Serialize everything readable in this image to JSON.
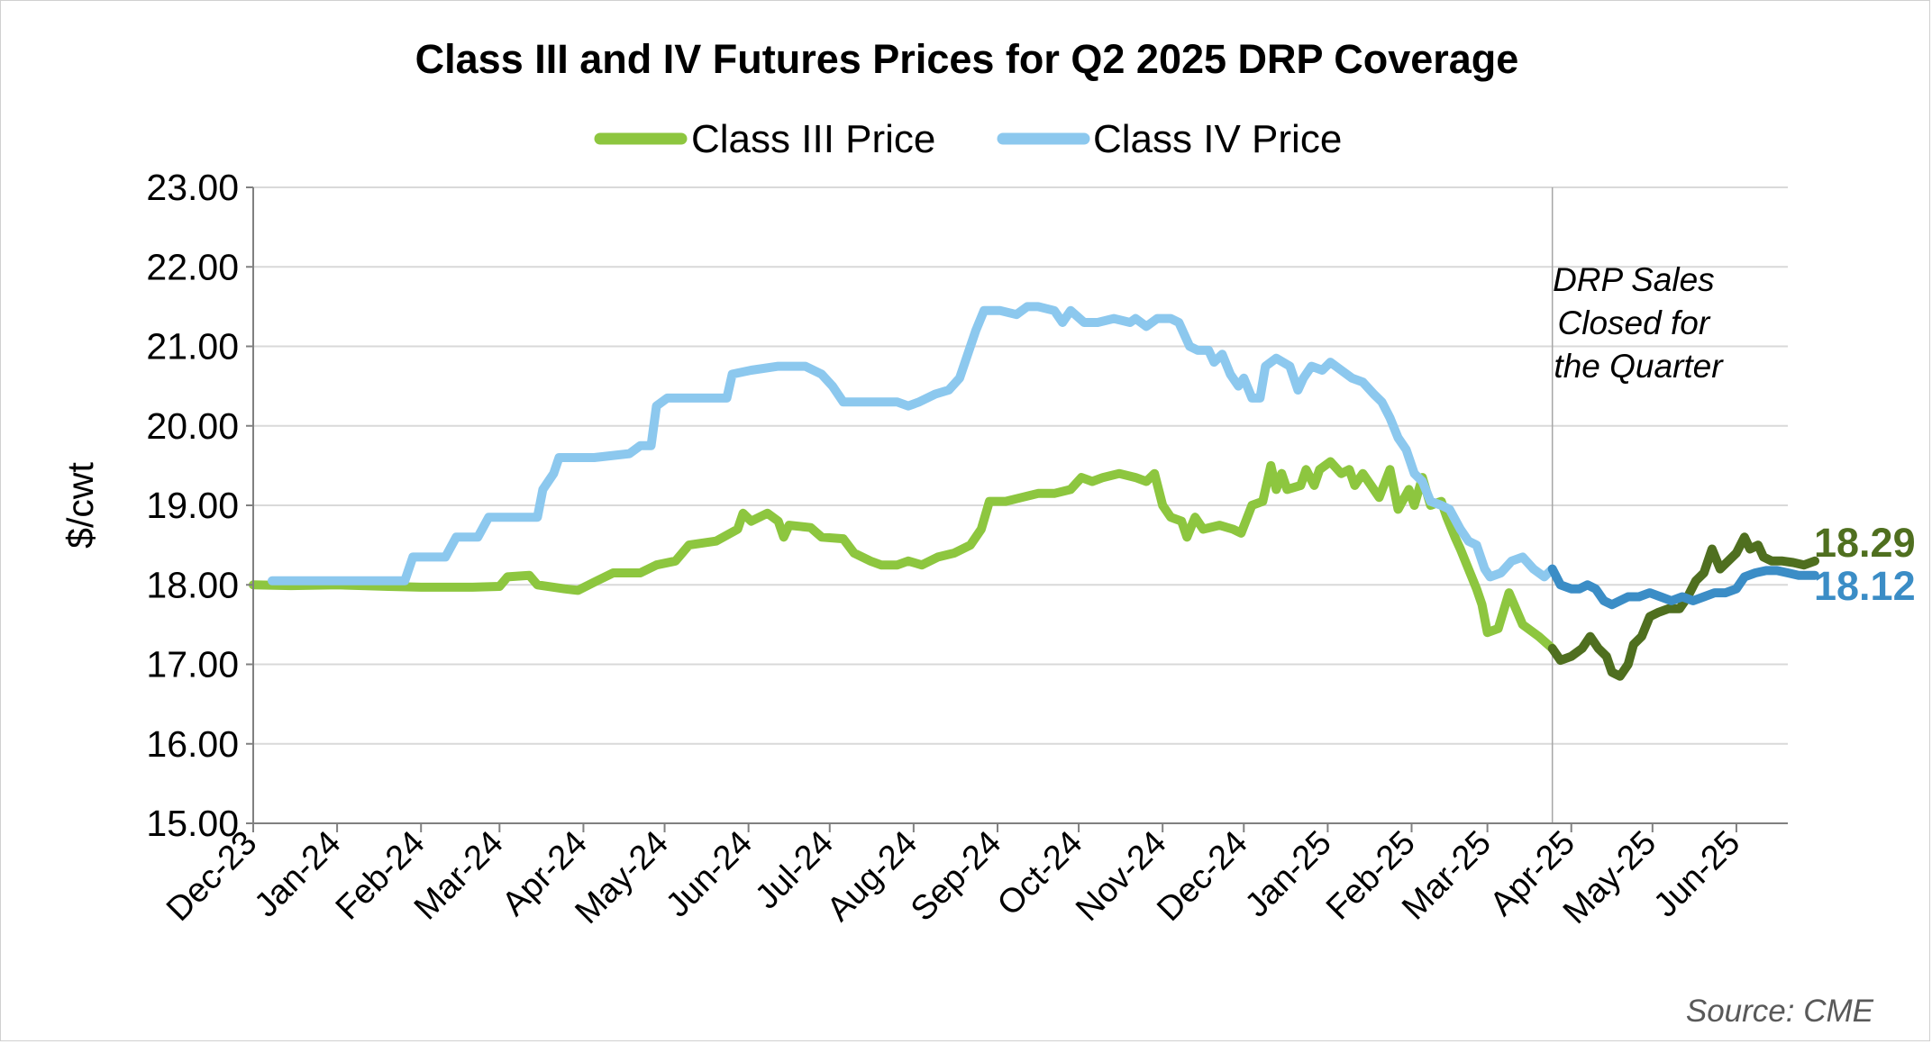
{
  "chart_data": {
    "type": "line",
    "title": "Class III and IV Futures Prices for Q2 2025 DRP Coverage",
    "ylabel": "$/cwt",
    "ylim": [
      15,
      23
    ],
    "y_ticks": [
      "15.00",
      "16.00",
      "17.00",
      "18.00",
      "19.00",
      "20.00",
      "21.00",
      "22.00",
      "23.00"
    ],
    "x_range": [
      "2023-12-01",
      "2025-06-20"
    ],
    "x_ticks": [
      {
        "date": "2023-12-01",
        "label": "Dec-23"
      },
      {
        "date": "2024-01-01",
        "label": "Jan-24"
      },
      {
        "date": "2024-02-01",
        "label": "Feb-24"
      },
      {
        "date": "2024-03-01",
        "label": "Mar-24"
      },
      {
        "date": "2024-04-01",
        "label": "Apr-24"
      },
      {
        "date": "2024-05-01",
        "label": "May-24"
      },
      {
        "date": "2024-06-01",
        "label": "Jun-24"
      },
      {
        "date": "2024-07-01",
        "label": "Jul-24"
      },
      {
        "date": "2024-08-01",
        "label": "Aug-24"
      },
      {
        "date": "2024-09-01",
        "label": "Sep-24"
      },
      {
        "date": "2024-10-01",
        "label": "Oct-24"
      },
      {
        "date": "2024-11-01",
        "label": "Nov-24"
      },
      {
        "date": "2024-12-01",
        "label": "Dec-24"
      },
      {
        "date": "2025-01-01",
        "label": "Jan-25"
      },
      {
        "date": "2025-02-01",
        "label": "Feb-25"
      },
      {
        "date": "2025-03-01",
        "label": "Mar-25"
      },
      {
        "date": "2025-04-01",
        "label": "Apr-25"
      },
      {
        "date": "2025-05-01",
        "label": "May-25"
      },
      {
        "date": "2025-06-01",
        "label": "Jun-25"
      }
    ],
    "grid": "horizontal",
    "legend": "top",
    "divider_date": "2025-03-25",
    "annotation": [
      "DRP Sales",
      "Closed for",
      "the Quarter"
    ],
    "series": [
      {
        "name": "Class III Price",
        "color": "#8dc63f",
        "color_after_divider": "#4f6f1f",
        "end_label": "18.29",
        "points": [
          [
            "2023-12-01",
            18.0
          ],
          [
            "2023-12-15",
            17.99
          ],
          [
            "2024-01-01",
            18.0
          ],
          [
            "2024-01-20",
            17.98
          ],
          [
            "2024-02-01",
            17.97
          ],
          [
            "2024-02-20",
            17.97
          ],
          [
            "2024-03-01",
            17.98
          ],
          [
            "2024-03-04",
            18.1
          ],
          [
            "2024-03-12",
            18.12
          ],
          [
            "2024-03-15",
            18.0
          ],
          [
            "2024-03-25",
            17.95
          ],
          [
            "2024-03-30",
            17.93
          ],
          [
            "2024-04-06",
            18.05
          ],
          [
            "2024-04-12",
            18.15
          ],
          [
            "2024-04-22",
            18.15
          ],
          [
            "2024-04-28",
            18.25
          ],
          [
            "2024-05-05",
            18.3
          ],
          [
            "2024-05-10",
            18.5
          ],
          [
            "2024-05-20",
            18.55
          ],
          [
            "2024-05-28",
            18.7
          ],
          [
            "2024-05-30",
            18.9
          ],
          [
            "2024-06-02",
            18.8
          ],
          [
            "2024-06-08",
            18.9
          ],
          [
            "2024-06-12",
            18.8
          ],
          [
            "2024-06-14",
            18.6
          ],
          [
            "2024-06-16",
            18.75
          ],
          [
            "2024-06-24",
            18.72
          ],
          [
            "2024-06-28",
            18.6
          ],
          [
            "2024-07-06",
            18.58
          ],
          [
            "2024-07-10",
            18.4
          ],
          [
            "2024-07-16",
            18.3
          ],
          [
            "2024-07-20",
            18.25
          ],
          [
            "2024-07-26",
            18.25
          ],
          [
            "2024-07-30",
            18.3
          ],
          [
            "2024-08-04",
            18.25
          ],
          [
            "2024-08-10",
            18.35
          ],
          [
            "2024-08-16",
            18.4
          ],
          [
            "2024-08-22",
            18.5
          ],
          [
            "2024-08-26",
            18.7
          ],
          [
            "2024-08-29",
            19.05
          ],
          [
            "2024-09-04",
            19.05
          ],
          [
            "2024-09-10",
            19.1
          ],
          [
            "2024-09-16",
            19.15
          ],
          [
            "2024-09-22",
            19.15
          ],
          [
            "2024-09-28",
            19.2
          ],
          [
            "2024-10-02",
            19.35
          ],
          [
            "2024-10-06",
            19.3
          ],
          [
            "2024-10-10",
            19.35
          ],
          [
            "2024-10-16",
            19.4
          ],
          [
            "2024-10-22",
            19.35
          ],
          [
            "2024-10-26",
            19.3
          ],
          [
            "2024-10-29",
            19.4
          ],
          [
            "2024-11-01",
            19.0
          ],
          [
            "2024-11-04",
            18.85
          ],
          [
            "2024-11-08",
            18.8
          ],
          [
            "2024-11-10",
            18.6
          ],
          [
            "2024-11-13",
            18.85
          ],
          [
            "2024-11-16",
            18.7
          ],
          [
            "2024-11-22",
            18.75
          ],
          [
            "2024-11-27",
            18.7
          ],
          [
            "2024-11-30",
            18.65
          ],
          [
            "2024-12-04",
            19.0
          ],
          [
            "2024-12-08",
            19.05
          ],
          [
            "2024-12-11",
            19.5
          ],
          [
            "2024-12-13",
            19.2
          ],
          [
            "2024-12-15",
            19.4
          ],
          [
            "2024-12-17",
            19.2
          ],
          [
            "2024-12-22",
            19.25
          ],
          [
            "2024-12-24",
            19.45
          ],
          [
            "2024-12-27",
            19.25
          ],
          [
            "2024-12-29",
            19.45
          ],
          [
            "2025-01-02",
            19.55
          ],
          [
            "2025-01-06",
            19.4
          ],
          [
            "2025-01-09",
            19.45
          ],
          [
            "2025-01-11",
            19.25
          ],
          [
            "2025-01-14",
            19.4
          ],
          [
            "2025-01-17",
            19.25
          ],
          [
            "2025-01-20",
            19.1
          ],
          [
            "2025-01-24",
            19.45
          ],
          [
            "2025-01-27",
            18.95
          ],
          [
            "2025-01-31",
            19.2
          ],
          [
            "2025-02-02",
            19.0
          ],
          [
            "2025-02-05",
            19.35
          ],
          [
            "2025-02-08",
            19.0
          ],
          [
            "2025-02-12",
            19.05
          ],
          [
            "2025-02-14",
            18.85
          ],
          [
            "2025-02-17",
            18.6
          ],
          [
            "2025-02-19",
            18.45
          ],
          [
            "2025-02-22",
            18.2
          ],
          [
            "2025-02-25",
            17.95
          ],
          [
            "2025-02-27",
            17.75
          ],
          [
            "2025-03-01",
            17.4
          ],
          [
            "2025-03-05",
            17.45
          ],
          [
            "2025-03-09",
            17.9
          ],
          [
            "2025-03-14",
            17.5
          ],
          [
            "2025-03-20",
            17.35
          ],
          [
            "2025-03-25",
            17.2
          ],
          [
            "2025-03-28",
            17.05
          ],
          [
            "2025-04-01",
            17.1
          ],
          [
            "2025-04-05",
            17.2
          ],
          [
            "2025-04-08",
            17.35
          ],
          [
            "2025-04-11",
            17.2
          ],
          [
            "2025-04-14",
            17.1
          ],
          [
            "2025-04-16",
            16.9
          ],
          [
            "2025-04-19",
            16.85
          ],
          [
            "2025-04-22",
            17.0
          ],
          [
            "2025-04-24",
            17.25
          ],
          [
            "2025-04-27",
            17.35
          ],
          [
            "2025-04-30",
            17.6
          ],
          [
            "2025-05-03",
            17.65
          ],
          [
            "2025-05-07",
            17.7
          ],
          [
            "2025-05-11",
            17.7
          ],
          [
            "2025-05-14",
            17.85
          ],
          [
            "2025-05-17",
            18.05
          ],
          [
            "2025-05-20",
            18.15
          ],
          [
            "2025-05-23",
            18.45
          ],
          [
            "2025-05-26",
            18.2
          ],
          [
            "2025-05-29",
            18.3
          ],
          [
            "2025-06-01",
            18.4
          ],
          [
            "2025-06-04",
            18.6
          ],
          [
            "2025-06-06",
            18.45
          ],
          [
            "2025-06-09",
            18.5
          ],
          [
            "2025-06-11",
            18.35
          ],
          [
            "2025-06-14",
            18.3
          ],
          [
            "2025-06-18",
            18.3
          ],
          [
            "2025-06-22",
            18.28
          ],
          [
            "2025-06-26",
            18.25
          ],
          [
            "2025-06-30",
            18.3
          ]
        ]
      },
      {
        "name": "Class IV Price",
        "color": "#8cc8ee",
        "color_after_divider": "#3b8dc6",
        "end_label": "18.12",
        "points": [
          [
            "2023-12-08",
            18.05
          ],
          [
            "2023-12-20",
            18.05
          ],
          [
            "2024-01-05",
            18.05
          ],
          [
            "2024-01-18",
            18.05
          ],
          [
            "2024-01-26",
            18.05
          ],
          [
            "2024-01-29",
            18.35
          ],
          [
            "2024-02-10",
            18.35
          ],
          [
            "2024-02-14",
            18.6
          ],
          [
            "2024-02-22",
            18.6
          ],
          [
            "2024-02-26",
            18.85
          ],
          [
            "2024-03-10",
            18.85
          ],
          [
            "2024-03-15",
            18.85
          ],
          [
            "2024-03-17",
            19.2
          ],
          [
            "2024-03-21",
            19.4
          ],
          [
            "2024-03-23",
            19.6
          ],
          [
            "2024-04-05",
            19.6
          ],
          [
            "2024-04-18",
            19.65
          ],
          [
            "2024-04-22",
            19.75
          ],
          [
            "2024-04-26",
            19.75
          ],
          [
            "2024-04-28",
            20.25
          ],
          [
            "2024-05-02",
            20.35
          ],
          [
            "2024-05-12",
            20.35
          ],
          [
            "2024-05-24",
            20.35
          ],
          [
            "2024-05-26",
            20.65
          ],
          [
            "2024-06-02",
            20.7
          ],
          [
            "2024-06-12",
            20.75
          ],
          [
            "2024-06-22",
            20.75
          ],
          [
            "2024-06-28",
            20.65
          ],
          [
            "2024-07-02",
            20.5
          ],
          [
            "2024-07-06",
            20.3
          ],
          [
            "2024-07-12",
            20.3
          ],
          [
            "2024-07-20",
            20.3
          ],
          [
            "2024-07-26",
            20.3
          ],
          [
            "2024-07-30",
            20.25
          ],
          [
            "2024-08-03",
            20.3
          ],
          [
            "2024-08-09",
            20.4
          ],
          [
            "2024-08-14",
            20.45
          ],
          [
            "2024-08-18",
            20.6
          ],
          [
            "2024-08-21",
            20.9
          ],
          [
            "2024-08-24",
            21.2
          ],
          [
            "2024-08-27",
            21.45
          ],
          [
            "2024-09-02",
            21.45
          ],
          [
            "2024-09-08",
            21.4
          ],
          [
            "2024-09-12",
            21.5
          ],
          [
            "2024-09-16",
            21.5
          ],
          [
            "2024-09-22",
            21.45
          ],
          [
            "2024-09-25",
            21.3
          ],
          [
            "2024-09-28",
            21.45
          ],
          [
            "2024-10-03",
            21.3
          ],
          [
            "2024-10-08",
            21.3
          ],
          [
            "2024-10-14",
            21.35
          ],
          [
            "2024-10-20",
            21.3
          ],
          [
            "2024-10-22",
            21.35
          ],
          [
            "2024-10-26",
            21.25
          ],
          [
            "2024-10-30",
            21.35
          ],
          [
            "2024-11-04",
            21.35
          ],
          [
            "2024-11-07",
            21.3
          ],
          [
            "2024-11-11",
            21.0
          ],
          [
            "2024-11-14",
            20.95
          ],
          [
            "2024-11-18",
            20.95
          ],
          [
            "2024-11-20",
            20.8
          ],
          [
            "2024-11-23",
            20.9
          ],
          [
            "2024-11-26",
            20.65
          ],
          [
            "2024-11-29",
            20.5
          ],
          [
            "2024-12-01",
            20.6
          ],
          [
            "2024-12-04",
            20.35
          ],
          [
            "2024-12-07",
            20.35
          ],
          [
            "2024-12-09",
            20.75
          ],
          [
            "2024-12-13",
            20.85
          ],
          [
            "2024-12-18",
            20.75
          ],
          [
            "2024-12-21",
            20.45
          ],
          [
            "2024-12-23",
            20.6
          ],
          [
            "2024-12-26",
            20.75
          ],
          [
            "2024-12-30",
            20.7
          ],
          [
            "2025-01-02",
            20.8
          ],
          [
            "2025-01-06",
            20.7
          ],
          [
            "2025-01-10",
            20.6
          ],
          [
            "2025-01-14",
            20.55
          ],
          [
            "2025-01-18",
            20.4
          ],
          [
            "2025-01-21",
            20.3
          ],
          [
            "2025-01-24",
            20.1
          ],
          [
            "2025-01-27",
            19.85
          ],
          [
            "2025-01-30",
            19.7
          ],
          [
            "2025-02-02",
            19.4
          ],
          [
            "2025-02-05",
            19.3
          ],
          [
            "2025-02-08",
            19.05
          ],
          [
            "2025-02-12",
            19.0
          ],
          [
            "2025-02-15",
            18.95
          ],
          [
            "2025-02-19",
            18.7
          ],
          [
            "2025-02-22",
            18.55
          ],
          [
            "2025-02-25",
            18.5
          ],
          [
            "2025-02-28",
            18.2
          ],
          [
            "2025-03-02",
            18.1
          ],
          [
            "2025-03-06",
            18.15
          ],
          [
            "2025-03-10",
            18.3
          ],
          [
            "2025-03-14",
            18.35
          ],
          [
            "2025-03-18",
            18.2
          ],
          [
            "2025-03-22",
            18.1
          ],
          [
            "2025-03-25",
            18.2
          ],
          [
            "2025-03-28",
            18.0
          ],
          [
            "2025-04-01",
            17.95
          ],
          [
            "2025-04-04",
            17.95
          ],
          [
            "2025-04-07",
            18.0
          ],
          [
            "2025-04-10",
            17.95
          ],
          [
            "2025-04-13",
            17.8
          ],
          [
            "2025-04-16",
            17.75
          ],
          [
            "2025-04-19",
            17.8
          ],
          [
            "2025-04-22",
            17.85
          ],
          [
            "2025-04-26",
            17.85
          ],
          [
            "2025-04-30",
            17.9
          ],
          [
            "2025-05-04",
            17.85
          ],
          [
            "2025-05-08",
            17.8
          ],
          [
            "2025-05-12",
            17.85
          ],
          [
            "2025-05-16",
            17.8
          ],
          [
            "2025-05-20",
            17.85
          ],
          [
            "2025-05-24",
            17.9
          ],
          [
            "2025-05-28",
            17.9
          ],
          [
            "2025-06-01",
            17.95
          ],
          [
            "2025-06-04",
            18.1
          ],
          [
            "2025-06-08",
            18.15
          ],
          [
            "2025-06-12",
            18.18
          ],
          [
            "2025-06-16",
            18.18
          ],
          [
            "2025-06-20",
            18.15
          ],
          [
            "2025-06-24",
            18.12
          ],
          [
            "2025-06-30",
            18.12
          ]
        ]
      }
    ],
    "source": "Source: CME"
  }
}
